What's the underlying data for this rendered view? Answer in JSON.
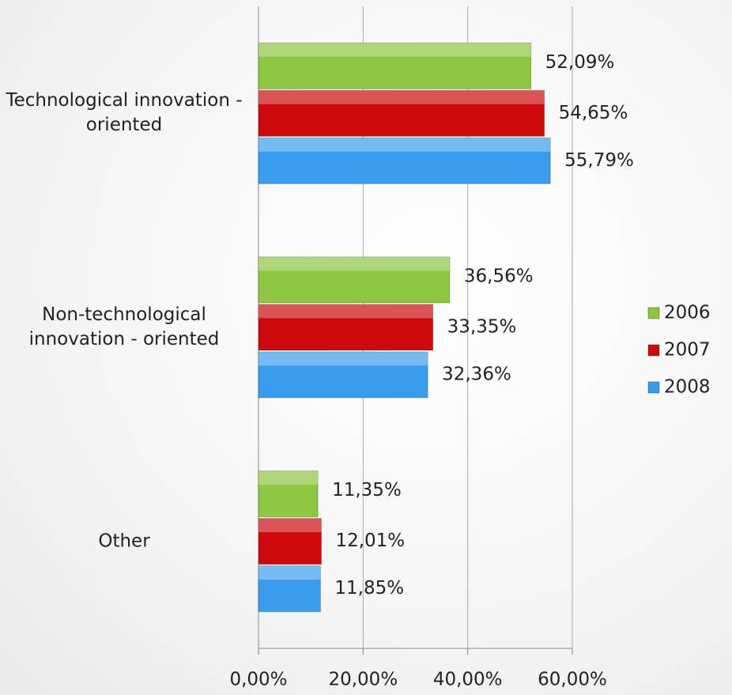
{
  "chart_data": {
    "type": "bar",
    "orientation": "horizontal",
    "categories": [
      "Technological innovation - oriented",
      "Non-technological innovation - oriented",
      "Other"
    ],
    "series": [
      {
        "name": "2006",
        "color": "#8dc63f",
        "values": [
          52.09,
          36.56,
          11.35
        ],
        "value_labels": [
          "52,09%",
          "36,56%",
          "11,35%"
        ]
      },
      {
        "name": "2007",
        "color": "#cc0a0a",
        "values": [
          54.65,
          33.35,
          12.01
        ],
        "value_labels": [
          "54,65%",
          "33,35%",
          "12,01%"
        ]
      },
      {
        "name": "2008",
        "color": "#3a9cec",
        "values": [
          55.79,
          32.36,
          11.85
        ],
        "value_labels": [
          "55,79%",
          "32,36%",
          "11,85%"
        ]
      }
    ],
    "xlim": [
      0,
      60
    ],
    "xticks": [
      {
        "value": 0,
        "label": "0,00%"
      },
      {
        "value": 20,
        "label": "20,00%"
      },
      {
        "value": 40,
        "label": "40,00%"
      },
      {
        "value": 60,
        "label": "60,00%"
      }
    ],
    "grid": true,
    "legend": "right"
  }
}
